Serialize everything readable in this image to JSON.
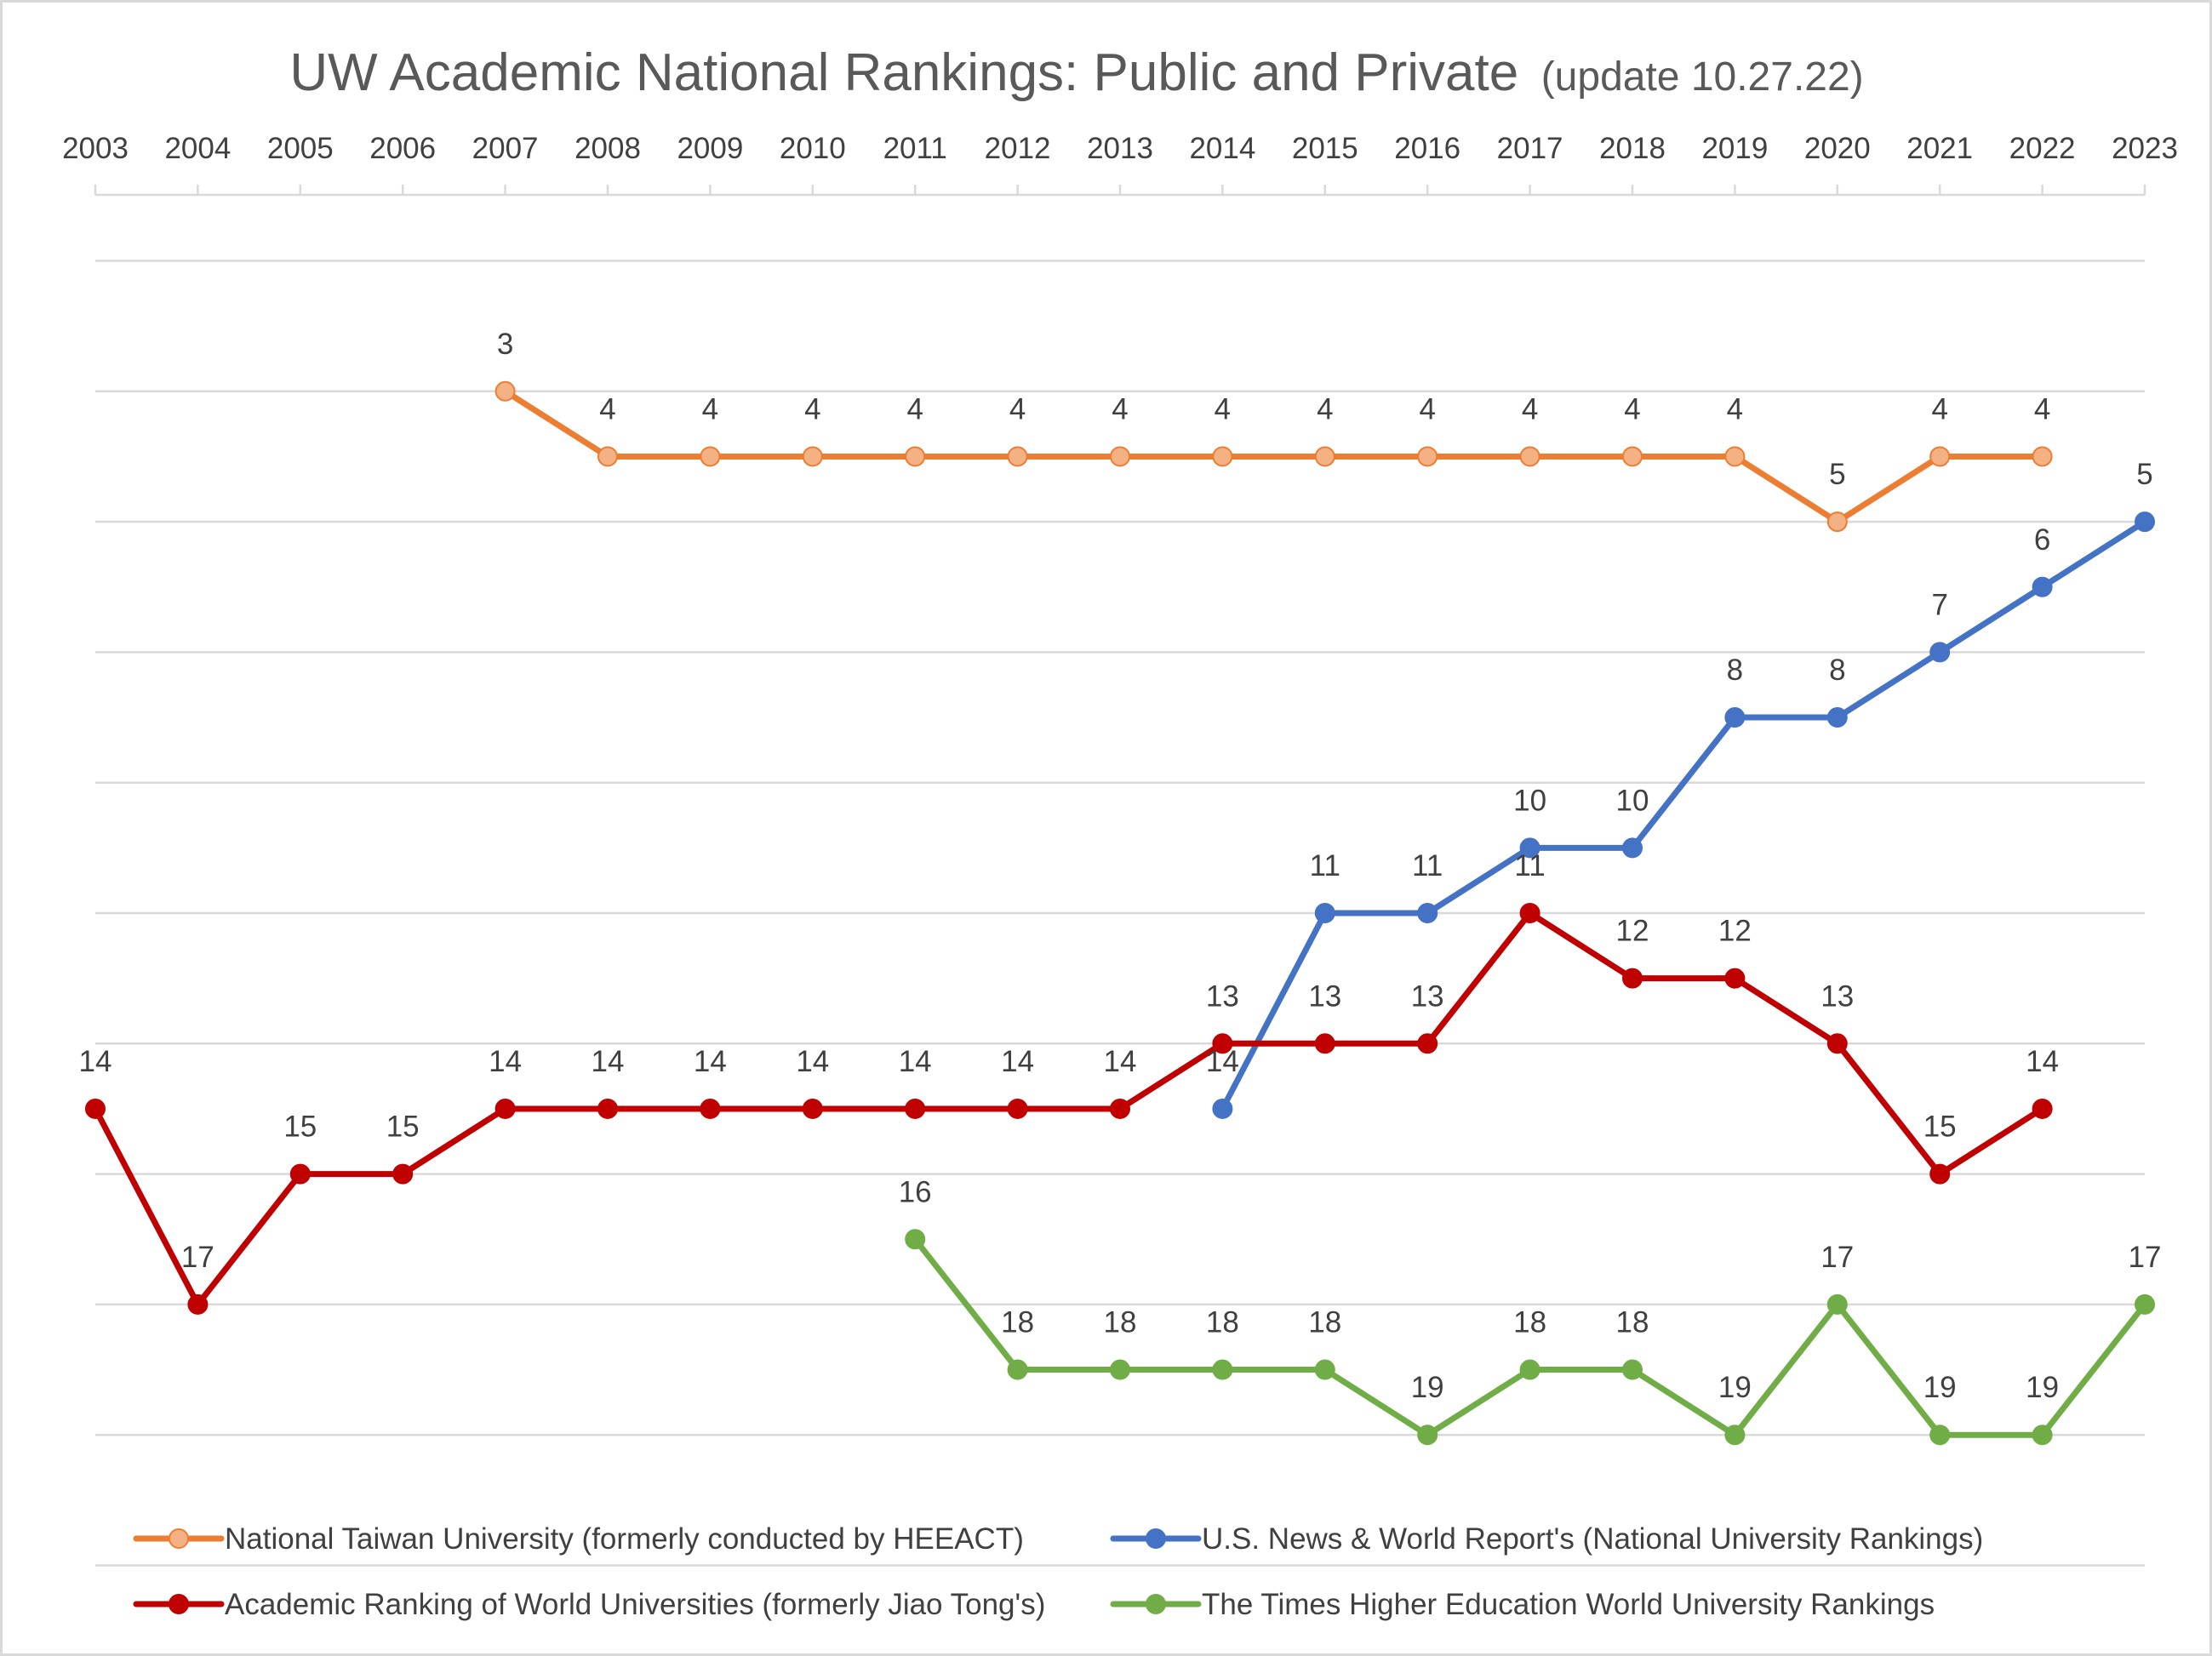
{
  "chart_data": {
    "type": "line",
    "title": "UW Academic National Rankings: Public and Private",
    "subtitle": "(update 10.27.22)",
    "xlabel": "",
    "ylabel": "",
    "x_axis_position": "top",
    "y_axis": {
      "inverted": true,
      "range": [
        1,
        21
      ],
      "tick_labels_shown": false
    },
    "grid": {
      "horizontal": true,
      "vertical": false
    },
    "legend_position": "bottom",
    "categories": [
      "2003",
      "2004",
      "2005",
      "2006",
      "2007",
      "2008",
      "2009",
      "2010",
      "2011",
      "2012",
      "2013",
      "2014",
      "2015",
      "2016",
      "2017",
      "2018",
      "2019",
      "2020",
      "2021",
      "2022",
      "2023"
    ],
    "series": [
      {
        "name": "National Taiwan University (formerly conducted by HEEACT)",
        "color": "#ED7D31",
        "marker_color": "#F4B183",
        "values": [
          null,
          null,
          null,
          null,
          3,
          4,
          4,
          4,
          4,
          4,
          4,
          4,
          4,
          4,
          4,
          4,
          4,
          5,
          4,
          4,
          null
        ]
      },
      {
        "name": "U.S. News & World Report's (National University Rankings)",
        "color": "#4472C4",
        "marker_color": "#4472C4",
        "values": [
          null,
          null,
          null,
          null,
          null,
          null,
          null,
          null,
          null,
          null,
          null,
          14,
          11,
          11,
          10,
          10,
          8,
          8,
          7,
          6,
          5
        ]
      },
      {
        "name": "Academic Ranking of World Universities (formerly Jiao Tong's)",
        "color": "#C00000",
        "marker_color": "#C00000",
        "values": [
          14,
          17,
          15,
          15,
          14,
          14,
          14,
          14,
          14,
          14,
          14,
          13,
          13,
          13,
          11,
          12,
          12,
          13,
          15,
          14,
          null
        ]
      },
      {
        "name": "The Times Higher Education World University Rankings",
        "color": "#70AD47",
        "marker_color": "#70AD47",
        "values": [
          null,
          null,
          null,
          null,
          null,
          null,
          null,
          null,
          16,
          18,
          18,
          18,
          18,
          19,
          18,
          18,
          19,
          17,
          19,
          19,
          17
        ]
      }
    ]
  }
}
